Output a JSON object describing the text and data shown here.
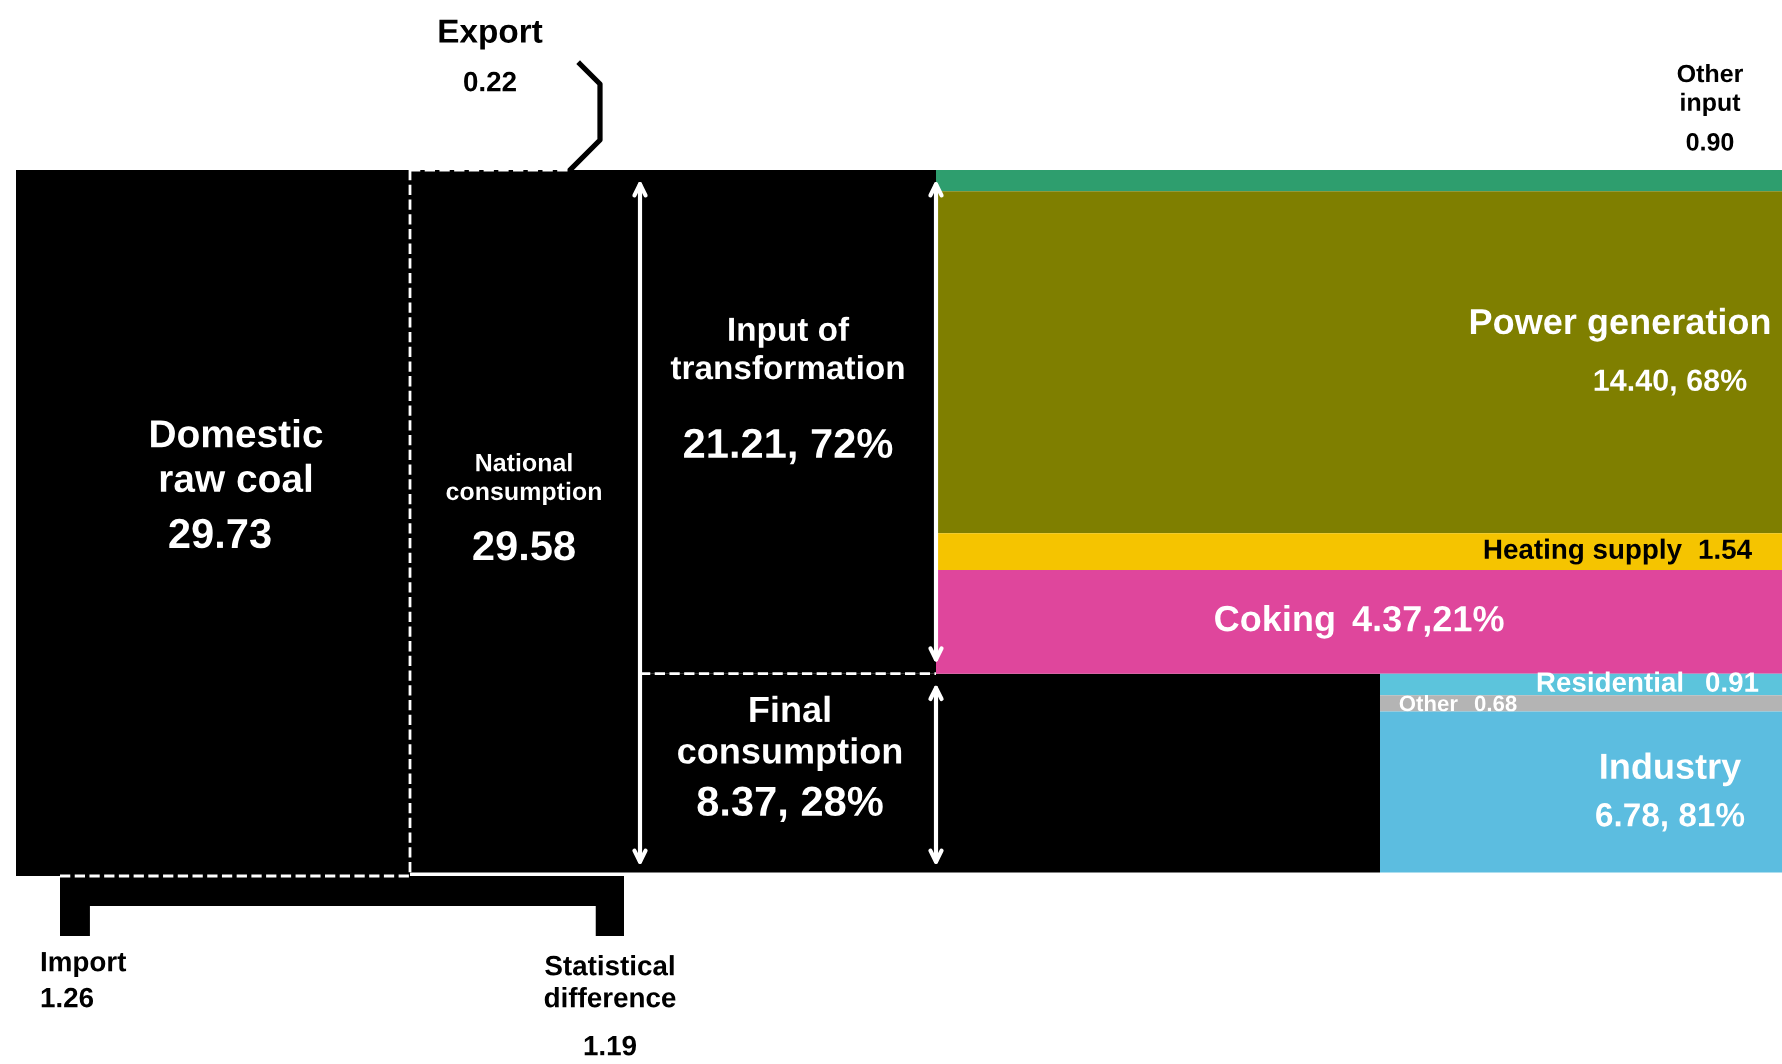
{
  "chart_data": {
    "type": "other",
    "categories": [
      "Domestic raw coal",
      "National consumption",
      "Input of transformation",
      "Final consumption",
      "Other input",
      "Power generation",
      "Heating supply",
      "Coking",
      "Residential",
      "Other",
      "Industry",
      "Import",
      "Statistical difference",
      "Export"
    ],
    "values": [
      29.73,
      29.58,
      21.21,
      8.37,
      0.9,
      14.4,
      1.54,
      4.37,
      0.91,
      0.68,
      6.78,
      1.26,
      1.19,
      0.22
    ],
    "value_labels": [
      "29.73",
      "29.58",
      "21.21, 72%",
      "8.37, 28%",
      "0.90",
      "14.40, 68%",
      "1.54",
      "4.37",
      "0.91",
      "0.68",
      "6.78, 81%",
      "1.26",
      "1.19",
      "0.22"
    ],
    "annotations": [
      ",21%"
    ],
    "colors": [
      "#000000",
      "#000000",
      "#000000",
      "#000000",
      "#2e9e6e",
      "#7f7f00",
      "#f5c400",
      "#df469c",
      "#5cc4dc",
      "#b4b4b4",
      "#5cbde0",
      "#000000",
      "#000000",
      "#000000"
    ]
  }
}
